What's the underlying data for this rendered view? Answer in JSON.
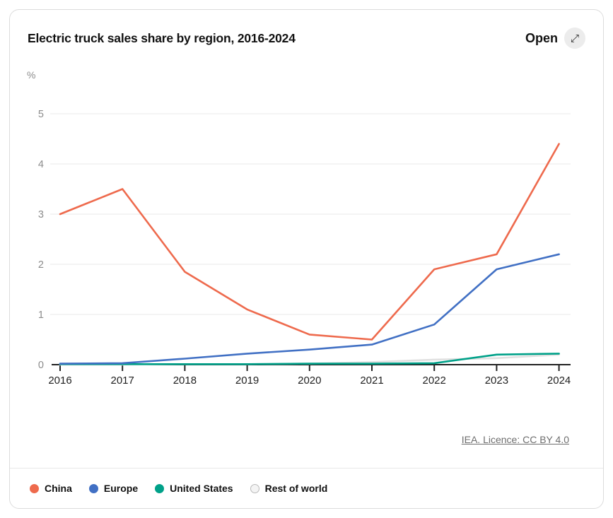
{
  "header": {
    "title": "Electric truck sales share by region, 2016-2024",
    "open_label": "Open",
    "expand_icon": "⤢"
  },
  "source": {
    "licence_label": "IEA. Licence: CC BY 4.0"
  },
  "chart_data": {
    "type": "line",
    "title": "Electric truck sales share by region, 2016-2024",
    "unit_label": "%",
    "x": [
      2016,
      2017,
      2018,
      2019,
      2020,
      2021,
      2022,
      2023,
      2024
    ],
    "ylim": [
      0,
      5
    ],
    "yticks": [
      0,
      1,
      2,
      3,
      4,
      5
    ],
    "grid": true,
    "legend_position": "bottom",
    "series": [
      {
        "name": "China",
        "color": "#ee6a4d",
        "values": [
          3.0,
          3.5,
          1.85,
          1.1,
          0.6,
          0.5,
          1.9,
          2.2,
          4.4
        ]
      },
      {
        "name": "Europe",
        "color": "#4170c4",
        "values": [
          0.02,
          0.03,
          0.12,
          0.22,
          0.3,
          0.4,
          0.8,
          1.9,
          2.2
        ]
      },
      {
        "name": "United States",
        "color": "#00a189",
        "values": [
          0.01,
          0.01,
          0.01,
          0.01,
          0.02,
          0.02,
          0.03,
          0.2,
          0.22
        ]
      },
      {
        "name": "Rest of world",
        "color": "#e0e0e0",
        "values": [
          0.0,
          0.0,
          0.01,
          0.01,
          0.02,
          0.05,
          0.1,
          0.13,
          0.2
        ]
      }
    ],
    "colors": {
      "gridline": "#e8e8e8",
      "axis": "#222222",
      "ytick_label": "#8c8c8c",
      "xtick_label": "#1f1f1f"
    }
  },
  "legend": {
    "items": [
      {
        "label": "China",
        "color": "#ee6a4d",
        "border": "#ee6a4d"
      },
      {
        "label": "Europe",
        "color": "#4170c4",
        "border": "#4170c4"
      },
      {
        "label": "United States",
        "color": "#00a189",
        "border": "#00a189"
      },
      {
        "label": "Rest of world",
        "color": "#f4f4f4",
        "border": "#b9b9b9"
      }
    ]
  }
}
